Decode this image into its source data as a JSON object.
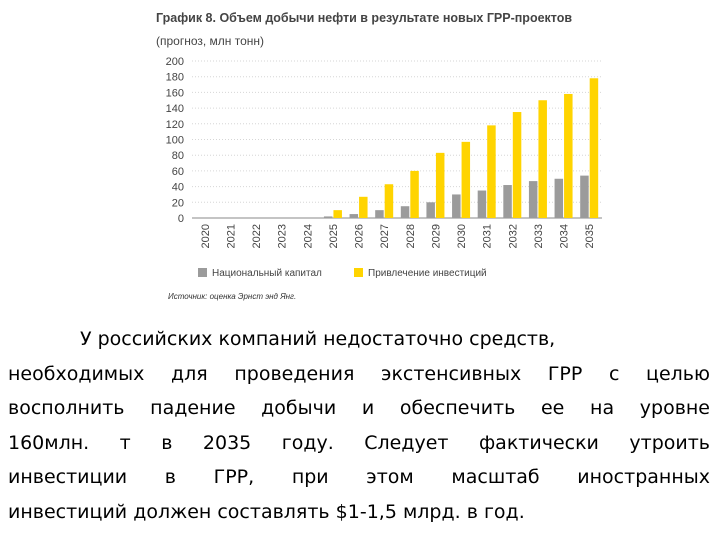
{
  "chart_data": {
    "type": "bar",
    "title": "График 8. Объем добычи нефти в результате новых ГРР-проектов",
    "subtitle": "(прогноз, млн тонн)",
    "categories": [
      "2020",
      "2021",
      "2022",
      "2023",
      "2024",
      "2025",
      "2026",
      "2027",
      "2028",
      "2029",
      "2030",
      "2031",
      "2032",
      "2033",
      "2034",
      "2035"
    ],
    "series": [
      {
        "name": "Национальный капитал",
        "color": "#9b9b9b",
        "values": [
          0,
          0,
          0,
          0,
          0,
          2,
          5,
          10,
          15,
          20,
          30,
          35,
          42,
          47,
          50,
          54
        ]
      },
      {
        "name": "Привлечение инвестиций",
        "color": "#ffd400",
        "values": [
          0,
          0,
          0,
          0,
          0,
          10,
          27,
          43,
          60,
          83,
          97,
          118,
          135,
          150,
          158,
          178
        ]
      }
    ],
    "ylim": [
      0,
      200
    ],
    "yticks": [
      "200",
      "180",
      "160",
      "140",
      "120",
      "100",
      "80",
      "60",
      "40",
      "20",
      "0"
    ],
    "grid": true,
    "legend_position": "bottom",
    "source": "Источник: оценка Эрнст энд Янг."
  },
  "text": {
    "lines": [
      "У российских компаний недостаточно средств,",
      "необходимых для проведения экстенсивных ГРР с целью",
      "восполнить падение добычи и обеспечить ее на уровне",
      "160млн. т в 2035 году. Следует фактически утроить",
      "инвестиции в ГРР, при этом масштаб иностранных",
      "инвестиций должен составлять $1-1,5 млрд. в год."
    ]
  }
}
